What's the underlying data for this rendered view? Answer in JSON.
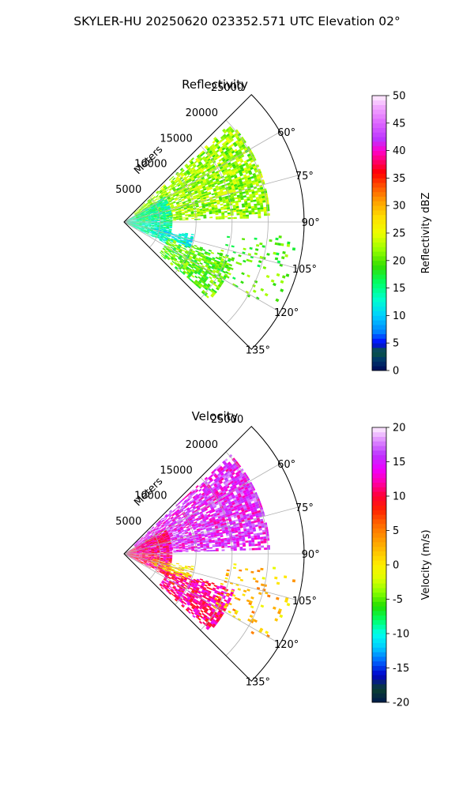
{
  "figure": {
    "suptitle": "SKYLER-HU  20250620  023352.571 UTC Elevation 02°"
  },
  "chart_data": [
    {
      "type": "heatmap",
      "title": "Reflectivity",
      "projection": "polar-sector",
      "radial_label": "Meters",
      "radial_ticks": [
        5000,
        10000,
        15000,
        20000,
        25000
      ],
      "r_max": 25000,
      "angle_ticks_deg": [
        60,
        75,
        90,
        105,
        120,
        135
      ],
      "angle_range_deg": [
        45,
        135
      ],
      "grid": true,
      "colorbar": {
        "label": "Reflectivity dBZ",
        "range": [
          0,
          50
        ],
        "ticks": [
          0,
          5,
          10,
          15,
          20,
          25,
          30,
          35,
          40,
          45,
          50
        ],
        "stops": [
          [
            0,
            "#000a5a"
          ],
          [
            2,
            "#00386b"
          ],
          [
            3.5,
            "#0b5a3c"
          ],
          [
            5,
            "#0000ff"
          ],
          [
            7,
            "#0080ff"
          ],
          [
            10,
            "#00d0ff"
          ],
          [
            13,
            "#00ffcc"
          ],
          [
            16,
            "#00ff66"
          ],
          [
            19,
            "#33dd00"
          ],
          [
            22,
            "#99ff00"
          ],
          [
            25,
            "#eeff00"
          ],
          [
            28,
            "#ffdd00"
          ],
          [
            31,
            "#ff9900"
          ],
          [
            34,
            "#ff4400"
          ],
          [
            36,
            "#ff0000"
          ],
          [
            38,
            "#ff0066"
          ],
          [
            40,
            "#ff00cc"
          ],
          [
            42,
            "#bb33ff"
          ],
          [
            45,
            "#dd66ff"
          ],
          [
            48,
            "#f2aaff"
          ],
          [
            50,
            "#fff0ff"
          ]
        ]
      },
      "echo_regions": [
        {
          "name": "main-echo",
          "az": [
            47,
            88
          ],
          "r": [
            1800,
            20000
          ],
          "value": 22,
          "density": 0.78
        },
        {
          "name": "near-field",
          "az": [
            58,
            118
          ],
          "r": [
            0,
            6500
          ],
          "value": 14,
          "density": 0.85
        },
        {
          "name": "southern-arm",
          "az": [
            108,
            132
          ],
          "r": [
            6500,
            16000
          ],
          "value": 20,
          "density": 0.7
        },
        {
          "name": "near-dry-patch",
          "az": [
            100,
            112
          ],
          "r": [
            4000,
            9500
          ],
          "value": 12,
          "density": 0.6
        },
        {
          "name": "clutter-east",
          "az": [
            95,
            122
          ],
          "r": [
            14000,
            24000
          ],
          "value": 20,
          "density": 0.13
        }
      ]
    },
    {
      "type": "heatmap",
      "title": "Velocity",
      "projection": "polar-sector",
      "radial_label": "Meters",
      "radial_ticks": [
        5000,
        10000,
        15000,
        20000,
        25000
      ],
      "r_max": 25000,
      "angle_ticks_deg": [
        60,
        75,
        90,
        105,
        120,
        135
      ],
      "angle_range_deg": [
        45,
        135
      ],
      "grid": true,
      "colorbar": {
        "label": "Velocity (m/s)",
        "range": [
          -20,
          20
        ],
        "ticks": [
          -20,
          -15,
          -10,
          -5,
          0,
          5,
          10,
          15,
          20
        ],
        "stops": [
          [
            -20,
            "#001a4d"
          ],
          [
            -18,
            "#0b4030"
          ],
          [
            -16,
            "#0000cc"
          ],
          [
            -14,
            "#0066ff"
          ],
          [
            -12,
            "#00ccff"
          ],
          [
            -10,
            "#00ffee"
          ],
          [
            -8,
            "#00ff66"
          ],
          [
            -6,
            "#22dd00"
          ],
          [
            -4,
            "#88ff00"
          ],
          [
            -2,
            "#ddff00"
          ],
          [
            0,
            "#ffee00"
          ],
          [
            3,
            "#ffaa00"
          ],
          [
            6,
            "#ff6600"
          ],
          [
            8,
            "#ff2200"
          ],
          [
            10,
            "#ff0033"
          ],
          [
            12,
            "#ff00aa"
          ],
          [
            14,
            "#ee00ff"
          ],
          [
            16,
            "#bb33ff"
          ],
          [
            18,
            "#dd88ff"
          ],
          [
            20,
            "#fff0ff"
          ]
        ]
      },
      "echo_regions": [
        {
          "name": "main-echo",
          "az": [
            47,
            88
          ],
          "r": [
            1800,
            20000
          ],
          "value": 15,
          "density": 0.85
        },
        {
          "name": "near-field",
          "az": [
            58,
            118
          ],
          "r": [
            0,
            6500
          ],
          "value": 11,
          "density": 0.85
        },
        {
          "name": "southern-arm",
          "az": [
            108,
            132
          ],
          "r": [
            6500,
            16000
          ],
          "value": 11,
          "density": 0.8
        },
        {
          "name": "near-dry-patch",
          "az": [
            100,
            112
          ],
          "r": [
            4000,
            9500
          ],
          "value": 1,
          "density": 0.6
        },
        {
          "name": "clutter-east",
          "az": [
            95,
            122
          ],
          "r": [
            14000,
            24000
          ],
          "value": 2,
          "density": 0.13
        }
      ]
    }
  ]
}
